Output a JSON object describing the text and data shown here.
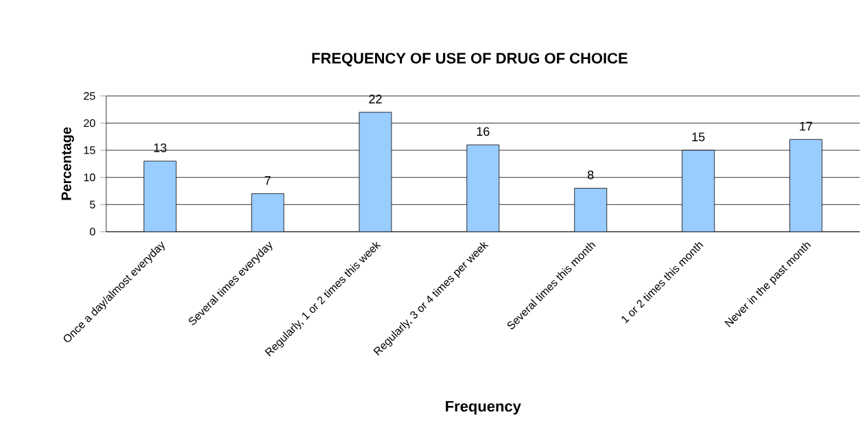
{
  "chart_data": {
    "type": "bar",
    "title": "FREQUENCY OF USE OF DRUG OF CHOICE",
    "xlabel": "Frequency",
    "ylabel": "Percentage",
    "categories": [
      "Once a day/almost everyday",
      "Several times everyday",
      "Regularly, 1 or 2 times this week",
      "Regularly, 3 or 4 times per week",
      "Several times this month",
      "1 or 2 times this month",
      "Never in the past month"
    ],
    "values": [
      13,
      7,
      22,
      16,
      8,
      15,
      17
    ],
    "color": "#99ccff",
    "ylim": [
      0,
      25
    ],
    "yticks": [
      0,
      5,
      10,
      15,
      20,
      25
    ],
    "grid": "y",
    "data_labels": true
  }
}
